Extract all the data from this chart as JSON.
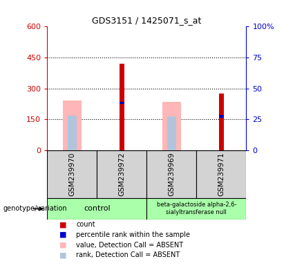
{
  "title": "GDS3151 / 1425071_s_at",
  "samples": [
    "GSM239970",
    "GSM239972",
    "GSM239969",
    "GSM239971"
  ],
  "count_values": [
    0,
    420,
    0,
    275
  ],
  "percentile_values": [
    0,
    230,
    0,
    165
  ],
  "value_absent": [
    242,
    0,
    235,
    0
  ],
  "rank_absent": [
    167,
    0,
    163,
    0
  ],
  "left_ylim": [
    0,
    600
  ],
  "left_yticks": [
    0,
    150,
    300,
    450,
    600
  ],
  "left_yticklabels": [
    "0",
    "150",
    "300",
    "450",
    "600"
  ],
  "right_yticks": [
    0,
    150,
    300,
    450,
    600
  ],
  "right_yticklabels": [
    "0",
    "25",
    "50",
    "75",
    "100%"
  ],
  "red": "#cc0000",
  "blue": "#0000cc",
  "pink": "#ffb6b6",
  "lightblue": "#b0c4de",
  "gray_bg": "#d3d3d3",
  "green_bg": "#aaffaa",
  "legend_items": [
    {
      "label": "count",
      "color": "#cc0000"
    },
    {
      "label": "percentile rank within the sample",
      "color": "#0000cc"
    },
    {
      "label": "value, Detection Call = ABSENT",
      "color": "#ffb6b6"
    },
    {
      "label": "rank, Detection Call = ABSENT",
      "color": "#b0c4de"
    }
  ]
}
